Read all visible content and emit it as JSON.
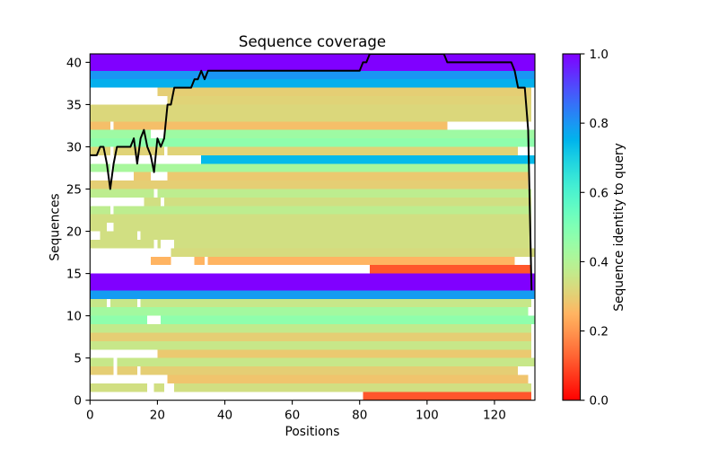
{
  "chart_data": {
    "type": "heatmap",
    "title": "Sequence coverage",
    "xlabel": "Positions",
    "ylabel": "Sequences",
    "xlim": [
      0,
      132
    ],
    "ylim": [
      0,
      41
    ],
    "xticks": [
      0,
      20,
      40,
      60,
      80,
      100,
      120
    ],
    "yticks": [
      0,
      5,
      10,
      15,
      20,
      25,
      30,
      35,
      40
    ],
    "grid": false,
    "missing_color": "#ffffff",
    "line_color": "#000000",
    "colorbar": {
      "label": "Sequence identity to query",
      "range": [
        0,
        1
      ],
      "position": "right",
      "tick_values": [
        0,
        0.2,
        0.4,
        0.6,
        0.8,
        1.0
      ],
      "tick_labels": [
        "0.0",
        "0.2",
        "0.4",
        "0.6",
        "0.8",
        "1.0"
      ]
    },
    "rows": [
      {
        "row": 0,
        "identity": 0.11,
        "segments": [
          [
            81,
            131
          ]
        ]
      },
      {
        "row": 1,
        "identity": 0.34,
        "segments": [
          [
            0,
            17
          ],
          [
            19,
            22
          ],
          [
            25,
            131
          ]
        ]
      },
      {
        "row": 2,
        "identity": 0.28,
        "segments": [
          [
            23,
            130
          ]
        ]
      },
      {
        "row": 3,
        "identity": 0.3,
        "segments": [
          [
            0,
            7
          ],
          [
            8,
            14
          ],
          [
            15,
            127
          ]
        ]
      },
      {
        "row": 4,
        "identity": 0.36,
        "segments": [
          [
            0,
            7
          ],
          [
            8,
            132
          ]
        ]
      },
      {
        "row": 5,
        "identity": 0.29,
        "segments": [
          [
            20,
            131
          ]
        ]
      },
      {
        "row": 6,
        "identity": 0.36,
        "segments": [
          [
            0,
            131
          ]
        ]
      },
      {
        "row": 7,
        "identity": 0.3,
        "segments": [
          [
            0,
            131
          ]
        ]
      },
      {
        "row": 8,
        "identity": 0.37,
        "segments": [
          [
            0,
            131
          ]
        ]
      },
      {
        "row": 9,
        "identity": 0.47,
        "segments": [
          [
            0,
            17
          ],
          [
            21,
            132
          ]
        ]
      },
      {
        "row": 10,
        "identity": 0.43,
        "segments": [
          [
            0,
            130
          ]
        ]
      },
      {
        "row": 11,
        "identity": 0.36,
        "segments": [
          [
            0,
            5
          ],
          [
            6,
            14
          ],
          [
            15,
            131
          ]
        ]
      },
      {
        "row": 12,
        "identity": 0.79,
        "segments": [
          [
            0,
            132
          ]
        ]
      },
      {
        "row": 13,
        "identity": 1.0,
        "segments": [
          [
            0,
            132
          ]
        ]
      },
      {
        "row": 14,
        "identity": 1.0,
        "segments": [
          [
            0,
            132
          ]
        ]
      },
      {
        "row": 15,
        "identity": 0.11,
        "segments": [
          [
            83,
            131
          ]
        ]
      },
      {
        "row": 16,
        "identity": 0.25,
        "segments": [
          [
            18,
            24
          ],
          [
            31,
            34
          ],
          [
            35,
            126
          ]
        ]
      },
      {
        "row": 17,
        "identity": 0.33,
        "segments": [
          [
            24,
            132
          ]
        ]
      },
      {
        "row": 18,
        "identity": 0.34,
        "segments": [
          [
            0,
            19
          ],
          [
            20,
            21
          ],
          [
            25,
            131
          ]
        ]
      },
      {
        "row": 19,
        "identity": 0.34,
        "segments": [
          [
            3,
            14
          ],
          [
            15,
            131
          ]
        ]
      },
      {
        "row": 20,
        "identity": 0.34,
        "segments": [
          [
            0,
            5
          ],
          [
            7,
            131
          ]
        ]
      },
      {
        "row": 21,
        "identity": 0.34,
        "segments": [
          [
            0,
            131
          ]
        ]
      },
      {
        "row": 22,
        "identity": 0.38,
        "segments": [
          [
            0,
            6
          ],
          [
            7,
            131
          ]
        ]
      },
      {
        "row": 23,
        "identity": 0.34,
        "segments": [
          [
            16,
            21
          ],
          [
            22,
            131
          ]
        ]
      },
      {
        "row": 24,
        "identity": 0.38,
        "segments": [
          [
            0,
            19
          ],
          [
            20,
            131
          ]
        ]
      },
      {
        "row": 25,
        "identity": 0.3,
        "segments": [
          [
            0,
            130
          ]
        ]
      },
      {
        "row": 26,
        "identity": 0.29,
        "segments": [
          [
            13,
            18
          ],
          [
            23,
            130
          ]
        ]
      },
      {
        "row": 27,
        "identity": 0.42,
        "segments": [
          [
            0,
            6
          ],
          [
            7,
            130
          ]
        ]
      },
      {
        "row": 28,
        "identity": 0.74,
        "segments": [
          [
            33,
            132
          ]
        ]
      },
      {
        "row": 29,
        "identity": 0.31,
        "segments": [
          [
            0,
            6
          ],
          [
            7,
            22
          ],
          [
            23,
            127
          ]
        ]
      },
      {
        "row": 30,
        "identity": 0.47,
        "segments": [
          [
            0,
            132
          ]
        ]
      },
      {
        "row": 31,
        "identity": 0.44,
        "segments": [
          [
            0,
            18
          ],
          [
            22,
            132
          ]
        ]
      },
      {
        "row": 32,
        "identity": 0.27,
        "segments": [
          [
            0,
            6
          ],
          [
            7,
            106
          ]
        ]
      },
      {
        "row": 33,
        "identity": 0.32,
        "segments": [
          [
            0,
            131
          ]
        ]
      },
      {
        "row": 34,
        "identity": 0.32,
        "segments": [
          [
            0,
            131
          ]
        ]
      },
      {
        "row": 35,
        "identity": 0.31,
        "segments": [
          [
            23,
            131
          ]
        ]
      },
      {
        "row": 36,
        "identity": 0.3,
        "segments": [
          [
            20,
            131
          ]
        ]
      },
      {
        "row": 37,
        "identity": 0.76,
        "segments": [
          [
            0,
            132
          ]
        ]
      },
      {
        "row": 38,
        "identity": 0.8,
        "segments": [
          [
            0,
            132
          ]
        ]
      },
      {
        "row": 39,
        "identity": 1.0,
        "segments": [
          [
            0,
            132
          ]
        ]
      },
      {
        "row": 40,
        "identity": 1.0,
        "segments": [
          [
            0,
            132
          ]
        ]
      }
    ],
    "coverage": [
      29,
      29,
      29,
      30,
      30,
      28,
      25,
      28,
      30,
      30,
      30,
      30,
      30,
      31,
      28,
      31,
      32,
      30,
      29,
      27,
      31,
      30,
      31,
      35,
      35,
      37,
      37,
      37,
      37,
      37,
      37,
      38,
      38,
      39,
      38,
      39,
      39,
      39,
      39,
      39,
      39,
      39,
      39,
      39,
      39,
      39,
      39,
      39,
      39,
      39,
      39,
      39,
      39,
      39,
      39,
      39,
      39,
      39,
      39,
      39,
      39,
      39,
      39,
      39,
      39,
      39,
      39,
      39,
      39,
      39,
      39,
      39,
      39,
      39,
      39,
      39,
      39,
      39,
      39,
      39,
      39,
      40,
      40,
      41,
      41,
      41,
      41,
      41,
      41,
      41,
      41,
      41,
      41,
      41,
      41,
      41,
      41,
      41,
      41,
      41,
      41,
      41,
      41,
      41,
      41,
      41,
      40,
      40,
      40,
      40,
      40,
      40,
      40,
      40,
      40,
      40,
      40,
      40,
      40,
      40,
      40,
      40,
      40,
      40,
      40,
      40,
      39,
      37,
      37,
      37,
      32,
      13
    ]
  }
}
